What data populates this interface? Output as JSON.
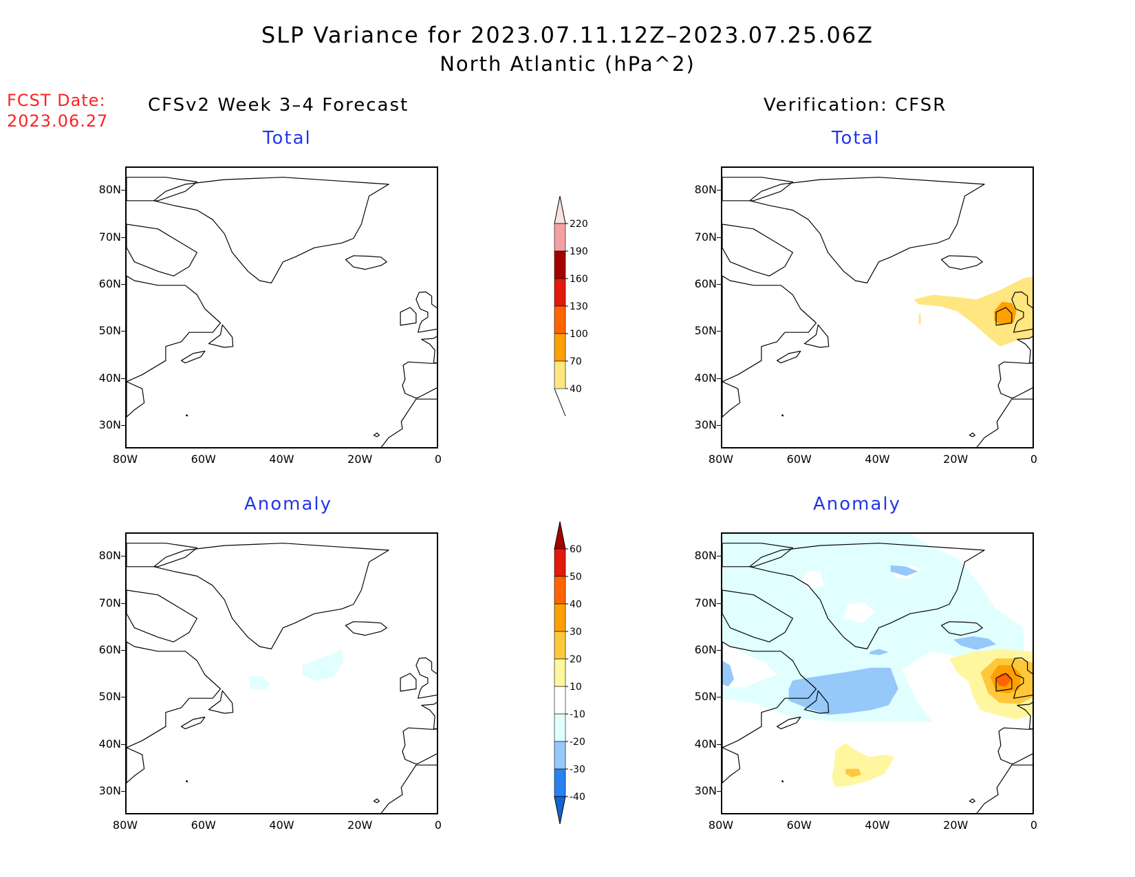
{
  "title": {
    "line1": "SLP Variance for 2023.07.11.12Z–2023.07.25.06Z",
    "line2": "North Atlantic (hPa^2)"
  },
  "fcst_date": {
    "label": "FCST Date:",
    "value": "2023.06.27"
  },
  "columns": {
    "left_header": "CFSv2 Week 3–4 Forecast",
    "right_header": "Verification: CFSR"
  },
  "panel_titles": {
    "total": "Total",
    "anomaly": "Anomaly"
  },
  "axes": {
    "lat_ticks": [
      "80N",
      "70N",
      "60N",
      "50N",
      "40N",
      "30N"
    ],
    "lon_ticks": [
      "80W",
      "60W",
      "40W",
      "20W",
      "0"
    ]
  },
  "colorbars": {
    "total": {
      "levels": [
        "40",
        "70",
        "100",
        "130",
        "160",
        "190",
        "220"
      ],
      "colors": [
        "#ffe680",
        "#ffa000",
        "#ff6400",
        "#e11a0c",
        "#a50000",
        "#f2a0a0",
        "#fde0e0"
      ]
    },
    "anomaly": {
      "levels": [
        "-40",
        "-30",
        "-20",
        "-10",
        "10",
        "20",
        "30",
        "40",
        "50",
        "60"
      ],
      "colors": [
        "#1464d2",
        "#2882f0",
        "#96c8fa",
        "#e1ffff",
        "#ffffff",
        "#fff6a0",
        "#ffc83c",
        "#ffa000",
        "#ff6400",
        "#e11a0c",
        "#a50000"
      ]
    }
  },
  "chart_data": {
    "type": "heatmap",
    "region": "North Atlantic",
    "lon_range": [
      -80,
      0
    ],
    "lat_range": [
      25,
      85
    ],
    "panels": [
      {
        "column": "CFSv2 Week 3–4 Forecast",
        "field": "Total",
        "features": []
      },
      {
        "column": "Verification: CFSR",
        "field": "Total",
        "features": [
          {
            "level": "40-70",
            "lon_range": [
              -30,
              0
            ],
            "lat_range": [
              47,
              62
            ]
          },
          {
            "level": "70-100",
            "lon_center": -8,
            "lat_center": 54
          }
        ]
      },
      {
        "column": "CFSv2 Week 3–4 Forecast",
        "field": "Anomaly",
        "features": [
          {
            "level": "-20 to -10",
            "lon_center": -30,
            "lat_center": 57
          },
          {
            "level": "-20 to -10",
            "lon_center": -46,
            "lat_center": 53
          }
        ]
      },
      {
        "column": "Verification: CFSR",
        "field": "Anomaly",
        "features": [
          {
            "level": "-30 to -20",
            "lon_center": -53,
            "lat_center": 51
          },
          {
            "level": "10-30",
            "lon_center": -45,
            "lat_center": 35
          },
          {
            "level": "30-50",
            "lon_center": -8,
            "lat_center": 54
          }
        ]
      }
    ]
  }
}
